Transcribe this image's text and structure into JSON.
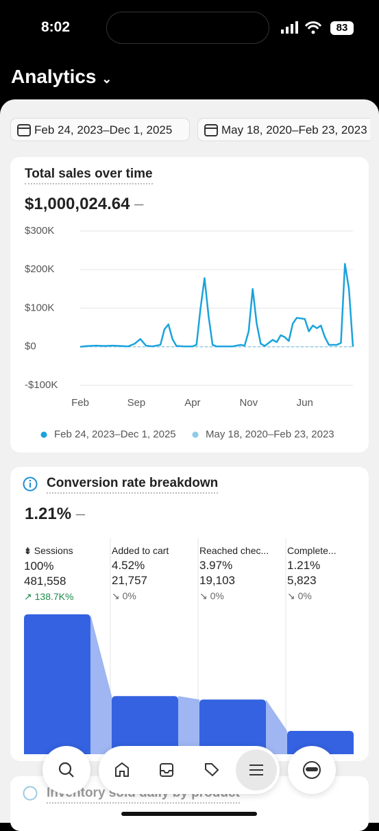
{
  "status_bar": {
    "time": "8:02",
    "battery": "83"
  },
  "header": {
    "title": "Analytics"
  },
  "date_filters": [
    "Feb 24, 2023–Dec 1, 2025",
    "May 18, 2020–Feb 23, 2023"
  ],
  "sales_card": {
    "title": "Total sales over time",
    "total": "$1,000,024.64",
    "chart_data": {
      "type": "line",
      "xlim": [
        0,
        34
      ],
      "xticks": [
        {
          "value": 0,
          "label": "Feb"
        },
        {
          "value": 7,
          "label": "Sep"
        },
        {
          "value": 14,
          "label": "Apr"
        },
        {
          "value": 21,
          "label": "Nov"
        },
        {
          "value": 28,
          "label": "Jun"
        }
      ],
      "ylim": [
        -100,
        300
      ],
      "yticks": [
        {
          "value": -100,
          "label": "-$100K"
        },
        {
          "value": 0,
          "label": "$0"
        },
        {
          "value": 100,
          "label": "$100K"
        },
        {
          "value": 200,
          "label": "$200K"
        },
        {
          "value": 300,
          "label": "$300K"
        }
      ],
      "grid": true,
      "series": [
        {
          "name": "Feb 24, 2023–Dec 1, 2025",
          "color": "#1aa3dc",
          "x": [
            0,
            1,
            2,
            3,
            4,
            5,
            6,
            6.8,
            7.5,
            8.2,
            9,
            10,
            10.5,
            11,
            11.5,
            12,
            13,
            14,
            14.5,
            15,
            15.5,
            16,
            16.5,
            17,
            18,
            19,
            20,
            20.5,
            21,
            21.5,
            22,
            22.5,
            23,
            24,
            24.5,
            25,
            25.5,
            26,
            26.5,
            27,
            28,
            28.5,
            29,
            29.5,
            30,
            30.5,
            31,
            32,
            32.5,
            33,
            33.5,
            34
          ],
          "values": [
            0,
            2,
            3,
            2,
            3,
            2,
            1,
            8,
            20,
            3,
            1,
            5,
            45,
            58,
            20,
            2,
            1,
            1,
            5,
            100,
            178,
            80,
            5,
            1,
            1,
            1,
            5,
            3,
            40,
            150,
            60,
            8,
            2,
            18,
            12,
            30,
            25,
            15,
            60,
            75,
            72,
            40,
            55,
            48,
            55,
            25,
            5,
            5,
            10,
            215,
            150,
            0
          ]
        },
        {
          "name": "May 18, 2020–Feb 23, 2023",
          "color": "#8fcbe8",
          "x": [
            0,
            34
          ],
          "values": [
            0,
            0
          ]
        }
      ]
    }
  },
  "conversion_card": {
    "title": "Conversion rate breakdown",
    "rate": "1.21%",
    "chart_data": {
      "type": "funnel",
      "log_scale": true,
      "ylim": [
        0.5,
        100
      ],
      "color": "#3462e0",
      "categories": [
        "Sessions",
        "Added to cart",
        "Reached chec...",
        "Complete..."
      ],
      "values": [
        100,
        4.52,
        3.97,
        1.21
      ],
      "value_labels": [
        "100%",
        "4.52%",
        "3.97%",
        "1.21%"
      ],
      "counts": [
        "481,558",
        "21,757",
        "19,103",
        "5,823"
      ],
      "changes": [
        "138.7K%",
        "0%",
        "0%",
        "0%"
      ]
    }
  },
  "inventory_card": {
    "title": "Inventory sold daily by product"
  }
}
